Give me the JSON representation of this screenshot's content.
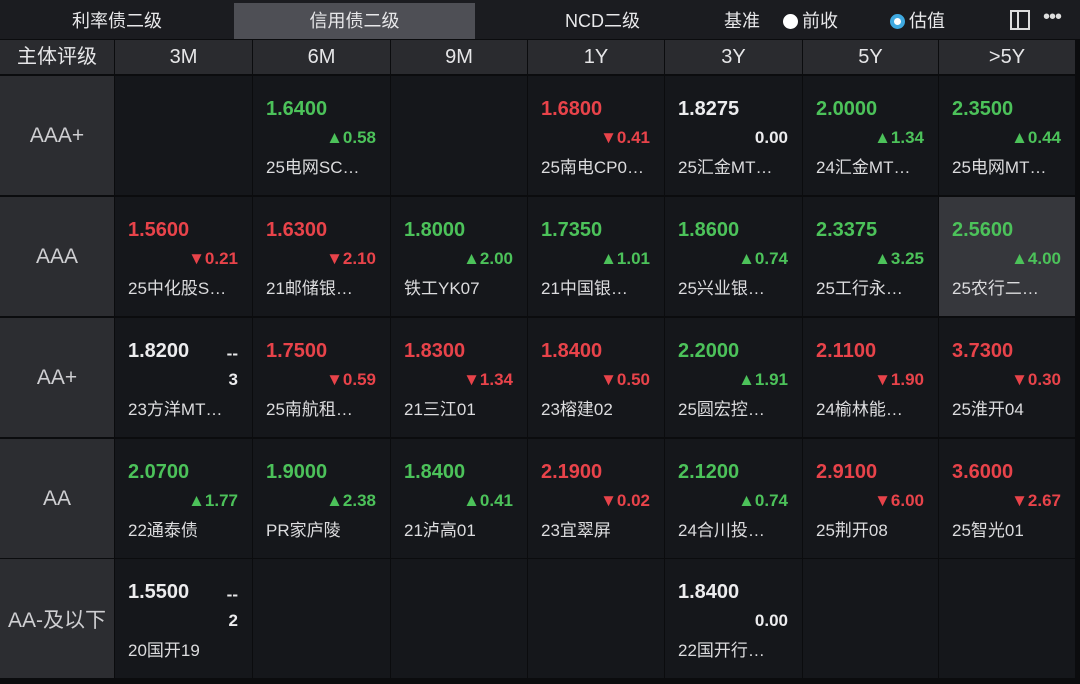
{
  "tabs": [
    {
      "label": "利率债二级",
      "active": false
    },
    {
      "label": "信用债二级",
      "active": true
    },
    {
      "label": "NCD二级",
      "active": false
    }
  ],
  "basis": {
    "label": "基准",
    "options": [
      {
        "label": "前收",
        "selected": false
      },
      {
        "label": "估值",
        "selected": true
      }
    ]
  },
  "icons": {
    "layout": "layout-icon",
    "more": "more-icon"
  },
  "colors": {
    "up": "#4cc25a",
    "down": "#e8434a",
    "accent": "#3fa9e0"
  },
  "header": {
    "rating_label": "主体评级",
    "terms": [
      "3M",
      "6M",
      "9M",
      "1Y",
      "3Y",
      "5Y",
      ">5Y"
    ]
  },
  "rows": [
    {
      "rating": "AAA+",
      "cells": [
        null,
        {
          "rate": "1.6400",
          "dir": "up",
          "change": "▲0.58",
          "name": "25电网SC…"
        },
        null,
        {
          "rate": "1.6800",
          "dir": "down",
          "change": "▼0.41",
          "name": "25南电CP0…"
        },
        {
          "rate": "1.8275",
          "dir": "flat",
          "change": "0.00",
          "name": "25汇金MT…"
        },
        {
          "rate": "2.0000",
          "dir": "up",
          "change": "▲1.34",
          "name": "24汇金MT…"
        },
        {
          "rate": "2.3500",
          "dir": "up",
          "change": "▲0.44",
          "name": "25电网MT…"
        }
      ]
    },
    {
      "rating": "AAA",
      "cells": [
        {
          "rate": "1.5600",
          "dir": "down",
          "change": "▼0.21",
          "name": "25中化股S…"
        },
        {
          "rate": "1.6300",
          "dir": "down",
          "change": "▼2.10",
          "name": "21邮储银…"
        },
        {
          "rate": "1.8000",
          "dir": "up",
          "change": "▲2.00",
          "name": "铁工YK07"
        },
        {
          "rate": "1.7350",
          "dir": "up",
          "change": "▲1.01",
          "name": "21中国银…"
        },
        {
          "rate": "1.8600",
          "dir": "up",
          "change": "▲0.74",
          "name": "25兴业银…"
        },
        {
          "rate": "2.3375",
          "dir": "up",
          "change": "▲3.25",
          "name": "25工行永…"
        },
        {
          "rate": "2.5600",
          "dir": "up",
          "change": "▲4.00",
          "name": "25农行二…",
          "selected": true
        }
      ]
    },
    {
      "rating": "AA+",
      "cells": [
        {
          "rate": "1.8200",
          "dir": "flat",
          "change_top": "--",
          "change": "3",
          "name": "23方洋MT…"
        },
        {
          "rate": "1.7500",
          "dir": "down",
          "change": "▼0.59",
          "name": "25南航租…"
        },
        {
          "rate": "1.8300",
          "dir": "down",
          "change": "▼1.34",
          "name": "21三江01"
        },
        {
          "rate": "1.8400",
          "dir": "down",
          "change": "▼0.50",
          "name": "23榕建02"
        },
        {
          "rate": "2.2000",
          "dir": "up",
          "change": "▲1.91",
          "name": "25圆宏控…"
        },
        {
          "rate": "2.1100",
          "dir": "down",
          "change": "▼1.90",
          "name": "24榆林能…"
        },
        {
          "rate": "3.7300",
          "dir": "down",
          "change": "▼0.30",
          "name": "25淮开04"
        }
      ]
    },
    {
      "rating": "AA",
      "cells": [
        {
          "rate": "2.0700",
          "dir": "up",
          "change": "▲1.77",
          "name": "22通泰债"
        },
        {
          "rate": "1.9000",
          "dir": "up",
          "change": "▲2.38",
          "name": "PR家庐陵"
        },
        {
          "rate": "1.8400",
          "dir": "up",
          "change": "▲0.41",
          "name": "21泸高01"
        },
        {
          "rate": "2.1900",
          "dir": "down",
          "change": "▼0.02",
          "name": "23宜翠屏"
        },
        {
          "rate": "2.1200",
          "dir": "up",
          "change": "▲0.74",
          "name": "24合川投…"
        },
        {
          "rate": "2.9100",
          "dir": "down",
          "change": "▼6.00",
          "name": "25荆开08"
        },
        {
          "rate": "3.6000",
          "dir": "down",
          "change": "▼2.67",
          "name": "25智光01"
        }
      ]
    },
    {
      "rating": "AA-及以下",
      "cells": [
        {
          "rate": "1.5500",
          "dir": "flat",
          "change_top": "--",
          "change": "2",
          "name": "20国开19"
        },
        null,
        null,
        null,
        {
          "rate": "1.8400",
          "dir": "flat",
          "change": "0.00",
          "name": "22国开行…"
        },
        null,
        null
      ]
    }
  ]
}
